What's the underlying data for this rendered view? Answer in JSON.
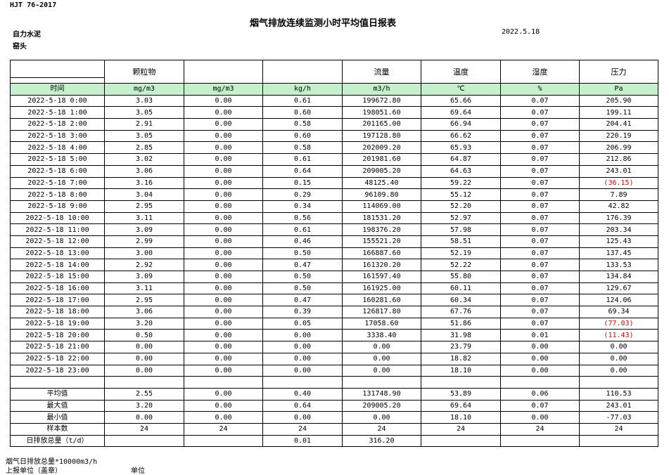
{
  "header": {
    "standard": "HJT  76-2017",
    "title": "烟气排放连续监测小时平均值日报表",
    "company": "自力水泥",
    "date": "2022.5.18",
    "location": "窑头"
  },
  "table": {
    "header": [
      "颗粒物",
      null,
      null,
      "流量",
      "温度",
      "湿度",
      "压力"
    ],
    "units": [
      "时间",
      "mg/m3",
      "mg/m3",
      "kg/h",
      "m3/h",
      "℃",
      "%",
      "Pa"
    ],
    "rows": [
      {
        "time": "2022-5-18 0:00",
        "values": [
          "3.03",
          "0.00",
          "0.61",
          "199672.80",
          "65.66",
          "0.07",
          "205.90"
        ]
      },
      {
        "time": "2022-5-18 1:00",
        "values": [
          "3.05",
          "0.00",
          "0.60",
          "198051.60",
          "69.64",
          "0.07",
          "199.11"
        ]
      },
      {
        "time": "2022-5-18 2:00",
        "values": [
          "2.91",
          "0.00",
          "0.58",
          "201165.00",
          "66.94",
          "0.07",
          "204.41"
        ]
      },
      {
        "time": "2022-5-18 3:00",
        "values": [
          "3.05",
          "0.00",
          "0.60",
          "197128.80",
          "66.62",
          "0.07",
          "220.19"
        ]
      },
      {
        "time": "2022-5-18 4:00",
        "values": [
          "2.85",
          "0.00",
          "0.58",
          "202009.20",
          "65.93",
          "0.07",
          "206.99"
        ]
      },
      {
        "time": "2022-5-18 5:00",
        "values": [
          "3.02",
          "0.00",
          "0.61",
          "201981.60",
          "64.87",
          "0.07",
          "212.86"
        ]
      },
      {
        "time": "2022-5-18 6:00",
        "values": [
          "3.06",
          "0.00",
          "0.64",
          "209005.20",
          "64.63",
          "0.07",
          "243.01"
        ]
      },
      {
        "time": "2022-5-18 7:00",
        "values": [
          "3.16",
          "0.00",
          "0.15",
          "48125.40",
          "59.22",
          "0.07",
          "(36.15)"
        ]
      },
      {
        "time": "2022-5-18 8:00",
        "values": [
          "3.04",
          "0.00",
          "0.29",
          "96109.80",
          "55.12",
          "0.07",
          "7.89"
        ]
      },
      {
        "time": "2022-5-18 9:00",
        "values": [
          "2.95",
          "0.00",
          "0.34",
          "114069.00",
          "52.20",
          "0.07",
          "42.82"
        ]
      },
      {
        "time": "2022-5-18 10:00",
        "values": [
          "3.11",
          "0.00",
          "0.56",
          "181531.20",
          "52.97",
          "0.07",
          "176.39"
        ]
      },
      {
        "time": "2022-5-18 11:00",
        "values": [
          "3.09",
          "0.00",
          "0.61",
          "198376.20",
          "57.98",
          "0.07",
          "203.34"
        ]
      },
      {
        "time": "2022-5-18 12:00",
        "values": [
          "2.99",
          "0.00",
          "0.46",
          "155521.20",
          "58.51",
          "0.07",
          "125.43"
        ]
      },
      {
        "time": "2022-5-18 13:00",
        "values": [
          "3.00",
          "0.00",
          "0.50",
          "166887.60",
          "52.19",
          "0.07",
          "137.45"
        ]
      },
      {
        "time": "2022-5-18 14:00",
        "values": [
          "2.92",
          "0.00",
          "0.47",
          "161320.20",
          "52.22",
          "0.07",
          "133.53"
        ]
      },
      {
        "time": "2022-5-18 15:00",
        "values": [
          "3.09",
          "0.00",
          "0.50",
          "161597.40",
          "55.80",
          "0.07",
          "134.84"
        ]
      },
      {
        "time": "2022-5-18 16:00",
        "values": [
          "3.11",
          "0.00",
          "0.50",
          "161925.00",
          "60.11",
          "0.07",
          "129.67"
        ]
      },
      {
        "time": "2022-5-18 17:00",
        "values": [
          "2.95",
          "0.00",
          "0.47",
          "160281.60",
          "60.34",
          "0.07",
          "124.06"
        ]
      },
      {
        "time": "2022-5-18 18:00",
        "values": [
          "3.06",
          "0.00",
          "0.39",
          "126817.80",
          "67.76",
          "0.07",
          "69.34"
        ]
      },
      {
        "time": "2022-5-18 19:00",
        "values": [
          "3.20",
          "0.00",
          "0.05",
          "17058.60",
          "51.86",
          "0.07",
          "(77.03)"
        ]
      },
      {
        "time": "2022-5-18 20:00",
        "values": [
          "0.50",
          "0.00",
          "0.00",
          "3338.40",
          "31.98",
          "0.01",
          "(11.43)"
        ]
      },
      {
        "time": "2022-5-18 21:00",
        "values": [
          "0.00",
          "0.00",
          "0.00",
          "0.00",
          "23.79",
          "0.00",
          "0.00"
        ]
      },
      {
        "time": "2022-5-18 22:00",
        "values": [
          "0.00",
          "0.00",
          "0.00",
          "0.00",
          "18.82",
          "0.00",
          "0.00"
        ]
      },
      {
        "time": "2022-5-18 23:00",
        "values": [
          "0.00",
          "0.00",
          "0.00",
          "0.00",
          "18.10",
          "0.00",
          "0.00"
        ]
      }
    ],
    "summary": [
      {
        "label": "平均值",
        "values": [
          "2.55",
          "0.00",
          "0.40",
          "131748.90",
          "53.89",
          "0.06",
          "110.53"
        ]
      },
      {
        "label": "最大值",
        "values": [
          "3.20",
          "0.00",
          "0.64",
          "209005.20",
          "69.64",
          "0.07",
          "243.01"
        ]
      },
      {
        "label": "最小值",
        "values": [
          "0.00",
          "0.00",
          "0.00",
          "0.00",
          "18.10",
          "0.00",
          "-77.03"
        ]
      },
      {
        "label": "样本数",
        "values": [
          "24",
          "24",
          "24",
          "24",
          "24",
          "24",
          "24"
        ]
      },
      {
        "label": "日排放总量（t/d）",
        "values": [
          null,
          null,
          "0.01",
          "316.20",
          null,
          null,
          null
        ]
      }
    ]
  },
  "footer": {
    "note": "烟气日排放总量*10000m3/h",
    "reporter": "上报单位（盖章）",
    "unit": "单位"
  }
}
